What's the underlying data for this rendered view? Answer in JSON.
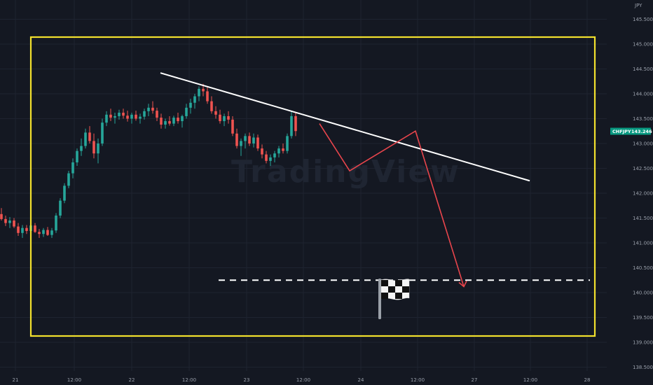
{
  "chart_data": {
    "type": "candlestick",
    "symbol": "CHFJPY",
    "currency": "JPY",
    "last_price": "143.246",
    "y_ticks": [
      "145.500",
      "145.000",
      "144.500",
      "144.000",
      "143.500",
      "143.000",
      "142.500",
      "142.000",
      "141.500",
      "141.000",
      "140.500",
      "140.000",
      "139.500",
      "139.000",
      "138.500"
    ],
    "ylim": [
      138.3,
      145.65
    ],
    "x_ticks": [
      "21",
      "12:00",
      "22",
      "12:00",
      "23",
      "12:00",
      "24",
      "12:00",
      "27",
      "12:00",
      "28"
    ],
    "grid": true,
    "candles": [
      [
        141.58,
        141.7,
        141.45,
        141.48
      ],
      [
        141.48,
        141.55,
        141.34,
        141.4
      ],
      [
        141.4,
        141.52,
        141.3,
        141.45
      ],
      [
        141.45,
        141.5,
        141.3,
        141.33
      ],
      [
        141.33,
        141.4,
        141.14,
        141.2
      ],
      [
        141.2,
        141.36,
        141.1,
        141.3
      ],
      [
        141.3,
        141.36,
        141.18,
        141.24
      ],
      [
        141.24,
        141.4,
        141.18,
        141.35
      ],
      [
        141.35,
        141.4,
        141.2,
        141.22
      ],
      [
        141.22,
        141.28,
        141.1,
        141.18
      ],
      [
        141.18,
        141.3,
        141.12,
        141.26
      ],
      [
        141.26,
        141.32,
        141.14,
        141.16
      ],
      [
        141.16,
        141.3,
        141.1,
        141.25
      ],
      [
        141.25,
        141.6,
        141.2,
        141.55
      ],
      [
        141.55,
        141.9,
        141.5,
        141.85
      ],
      [
        141.85,
        142.2,
        141.8,
        142.15
      ],
      [
        142.15,
        142.45,
        142.1,
        142.4
      ],
      [
        142.4,
        142.7,
        142.3,
        142.62
      ],
      [
        142.62,
        142.9,
        142.55,
        142.85
      ],
      [
        142.85,
        143.1,
        142.75,
        142.95
      ],
      [
        142.95,
        143.3,
        142.9,
        143.22
      ],
      [
        143.22,
        143.35,
        143.0,
        143.05
      ],
      [
        143.05,
        143.2,
        142.7,
        142.8
      ],
      [
        142.8,
        143.1,
        142.6,
        143.0
      ],
      [
        143.0,
        143.5,
        142.95,
        143.42
      ],
      [
        143.42,
        143.65,
        143.35,
        143.58
      ],
      [
        143.58,
        143.7,
        143.45,
        143.52
      ],
      [
        143.52,
        143.62,
        143.4,
        143.55
      ],
      [
        143.55,
        143.68,
        143.48,
        143.62
      ],
      [
        143.62,
        143.7,
        143.5,
        143.56
      ],
      [
        143.56,
        143.66,
        143.44,
        143.5
      ],
      [
        143.5,
        143.62,
        143.4,
        143.58
      ],
      [
        143.58,
        143.66,
        143.46,
        143.5
      ],
      [
        143.5,
        143.6,
        143.4,
        143.54
      ],
      [
        143.54,
        143.7,
        143.48,
        143.65
      ],
      [
        143.65,
        143.8,
        143.55,
        143.72
      ],
      [
        143.72,
        143.85,
        143.6,
        143.66
      ],
      [
        143.66,
        143.72,
        143.45,
        143.52
      ],
      [
        143.52,
        143.6,
        143.3,
        143.38
      ],
      [
        143.38,
        143.5,
        143.3,
        143.45
      ],
      [
        143.45,
        143.55,
        143.36,
        143.4
      ],
      [
        143.4,
        143.56,
        143.35,
        143.52
      ],
      [
        143.52,
        143.62,
        143.4,
        143.45
      ],
      [
        143.45,
        143.58,
        143.32,
        143.55
      ],
      [
        143.55,
        143.8,
        143.5,
        143.72
      ],
      [
        143.72,
        143.9,
        143.6,
        143.82
      ],
      [
        143.82,
        144.0,
        143.7,
        143.95
      ],
      [
        143.95,
        144.15,
        143.85,
        144.1
      ],
      [
        144.1,
        144.2,
        143.95,
        144.05
      ],
      [
        144.05,
        144.15,
        143.8,
        143.85
      ],
      [
        143.85,
        143.95,
        143.6,
        143.65
      ],
      [
        143.65,
        143.75,
        143.5,
        143.58
      ],
      [
        143.58,
        143.68,
        143.4,
        143.45
      ],
      [
        143.45,
        143.6,
        143.35,
        143.55
      ],
      [
        143.55,
        143.65,
        143.4,
        143.48
      ],
      [
        143.48,
        143.55,
        143.15,
        143.2
      ],
      [
        143.2,
        143.3,
        142.9,
        142.95
      ],
      [
        142.95,
        143.1,
        142.75,
        143.05
      ],
      [
        143.05,
        143.2,
        142.9,
        143.15
      ],
      [
        143.15,
        143.22,
        142.95,
        143.0
      ],
      [
        143.0,
        143.2,
        142.92,
        143.12
      ],
      [
        143.12,
        143.18,
        142.85,
        142.9
      ],
      [
        142.9,
        142.98,
        142.7,
        142.78
      ],
      [
        142.78,
        142.85,
        142.6,
        142.65
      ],
      [
        142.65,
        142.78,
        142.55,
        142.72
      ],
      [
        142.72,
        142.85,
        142.62,
        142.8
      ],
      [
        142.8,
        142.95,
        142.72,
        142.9
      ],
      [
        142.9,
        143.0,
        142.8,
        142.85
      ],
      [
        142.85,
        143.2,
        142.8,
        143.15
      ],
      [
        143.15,
        143.65,
        143.1,
        143.55
      ],
      [
        143.55,
        143.62,
        143.15,
        143.25
      ]
    ],
    "annotations": {
      "trendline": [
        [
          0,
          144.42
        ],
        [
          1,
          142.25
        ]
      ],
      "projection": [
        143.4,
        142.45,
        143.25,
        140.12
      ],
      "target_level": 140.25,
      "flag_icon": "checkered-flag-icon"
    },
    "colors": {
      "background": "#141822",
      "grid": "#1e2330",
      "up": "#26a69a",
      "down": "#ef5350",
      "frame": "#f3e12d",
      "trendline": "#ffffff",
      "projection": "#e8454c",
      "badge": "#089981"
    }
  }
}
